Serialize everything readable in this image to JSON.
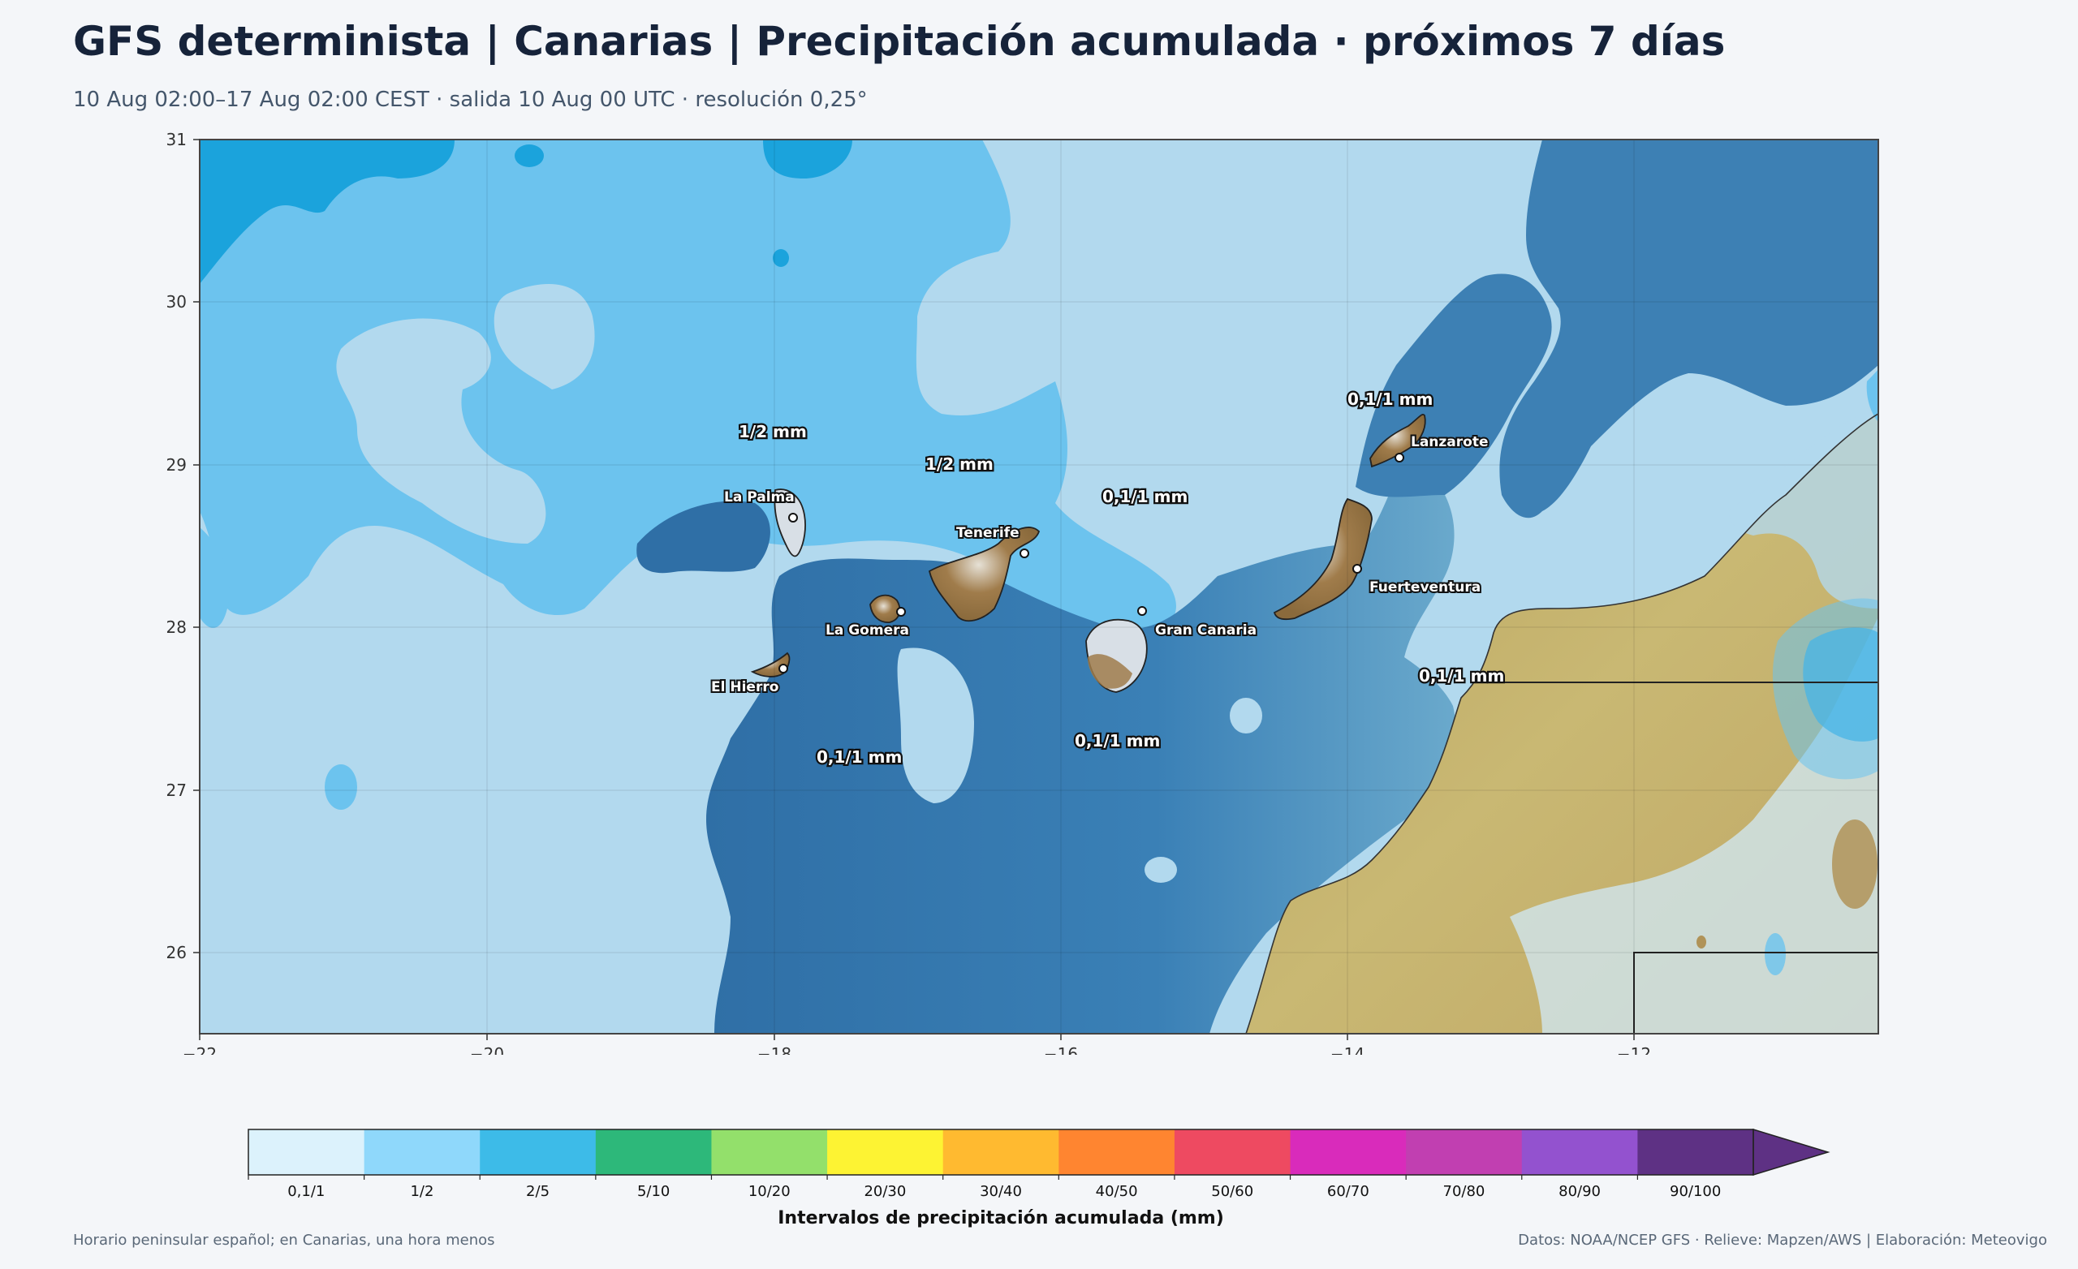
{
  "header": {
    "title": "GFS determinista | Canarias | Precipitación acumulada · próximos 7 días",
    "subtitle": "10 Aug 02:00–17 Aug 02:00 CEST · salida 10 Aug 00 UTC · resolución 0,25°"
  },
  "map": {
    "lon_range": [
      -22,
      -10.3
    ],
    "lat_range": [
      25.5,
      31
    ],
    "x_ticks": [
      "−22",
      "−20",
      "−18",
      "−16",
      "−14",
      "−12"
    ],
    "y_ticks": [
      "31",
      "30",
      "29",
      "28",
      "27",
      "26"
    ],
    "islands": [
      {
        "name": "La Palma"
      },
      {
        "name": "Tenerife"
      },
      {
        "name": "La Gomera"
      },
      {
        "name": "El Hierro"
      },
      {
        "name": "Gran Canaria"
      },
      {
        "name": "Fuerteventura"
      },
      {
        "name": "Lanzarote"
      }
    ],
    "rain_labels": [
      "1/2 mm",
      "1/2 mm",
      "0,1/1 mm",
      "0,1/1 mm",
      "0,1/1 mm",
      "0,1/1 mm",
      "0,1/1 mm"
    ],
    "field_colors": {
      "class_0_1_1": "#b2d9ee",
      "class_1_2": "#6cc3ee",
      "class_2_5": "#1ba3dc",
      "dry_sea": "#3b7fb5",
      "land": "#c8b573"
    }
  },
  "legend": {
    "title": "Intervalos de precipitación acumulada (mm)",
    "classes": [
      {
        "label": "0,1/1",
        "color": "#dcf2fc"
      },
      {
        "label": "1/2",
        "color": "#8fd8fb"
      },
      {
        "label": "2/5",
        "color": "#3dbbe8"
      },
      {
        "label": "5/10",
        "color": "#2db87a"
      },
      {
        "label": "10/20",
        "color": "#93e06b"
      },
      {
        "label": "20/30",
        "color": "#fdf333"
      },
      {
        "label": "30/40",
        "color": "#ffba30"
      },
      {
        "label": "40/50",
        "color": "#ff8530"
      },
      {
        "label": "50/60",
        "color": "#ee4a61"
      },
      {
        "label": "60/70",
        "color": "#d92bbb"
      },
      {
        "label": "70/80",
        "color": "#c13fb1"
      },
      {
        "label": "80/90",
        "color": "#9352cf"
      },
      {
        "label": "90/100",
        "color": "#5e3184"
      }
    ],
    "extend_color": "#5e3184"
  },
  "footer": {
    "left": "Horario peninsular español; en Canarias, una hora menos",
    "right": "Datos: NOAA/NCEP GFS · Relieve: Mapzen/AWS | Elaboración: Meteovigo"
  }
}
